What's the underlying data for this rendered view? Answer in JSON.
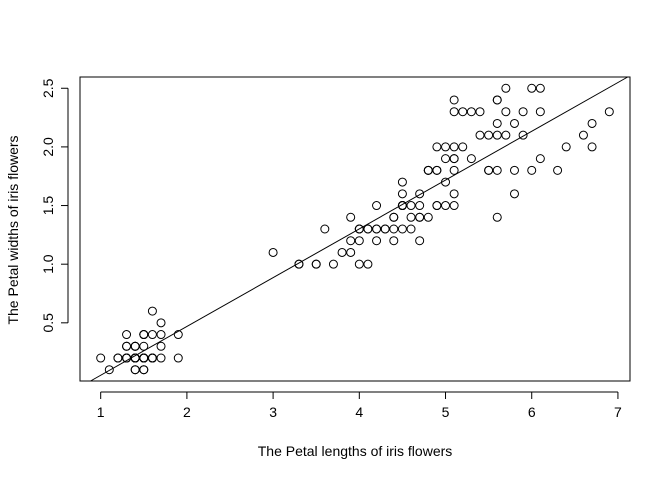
{
  "chart_data": {
    "type": "scatter",
    "title": "",
    "xlabel": "The Petal lengths of iris flowers",
    "ylabel": "The Petal widths of iris flowers",
    "xlim": [
      0.76,
      7.14
    ],
    "ylim": [
      0.004,
      2.596
    ],
    "xticks": [
      1,
      2,
      3,
      4,
      5,
      6,
      7
    ],
    "yticks": [
      0.5,
      1.0,
      1.5,
      2.0,
      2.5
    ],
    "ytick_labels": [
      "0.5",
      "1.0",
      "1.5",
      "2.0",
      "2.5"
    ],
    "grid": false,
    "regression_line": {
      "intercept": -0.363,
      "slope": 0.416
    },
    "x": [
      1.4,
      1.4,
      1.3,
      1.5,
      1.4,
      1.7,
      1.4,
      1.5,
      1.4,
      1.5,
      1.5,
      1.6,
      1.4,
      1.1,
      1.2,
      1.5,
      1.3,
      1.4,
      1.7,
      1.5,
      1.7,
      1.5,
      1.0,
      1.7,
      1.9,
      1.6,
      1.6,
      1.5,
      1.4,
      1.6,
      1.6,
      1.5,
      1.5,
      1.4,
      1.5,
      1.2,
      1.3,
      1.4,
      1.3,
      1.5,
      1.3,
      1.3,
      1.3,
      1.6,
      1.9,
      1.4,
      1.6,
      1.4,
      1.5,
      1.4,
      4.7,
      4.5,
      4.9,
      4.0,
      4.6,
      4.5,
      4.7,
      3.3,
      4.6,
      3.9,
      3.5,
      4.2,
      4.0,
      4.7,
      3.6,
      4.4,
      4.5,
      4.1,
      4.5,
      3.9,
      4.8,
      4.0,
      4.9,
      4.7,
      4.3,
      4.4,
      4.8,
      5.0,
      4.5,
      3.5,
      3.8,
      3.7,
      3.9,
      5.1,
      4.5,
      4.5,
      4.7,
      4.4,
      4.1,
      4.0,
      4.4,
      4.6,
      4.0,
      3.3,
      4.2,
      4.2,
      4.2,
      4.3,
      3.0,
      4.1,
      6.0,
      5.1,
      5.9,
      5.6,
      5.8,
      6.6,
      4.5,
      6.3,
      5.8,
      6.1,
      5.1,
      5.3,
      5.5,
      5.0,
      5.1,
      5.3,
      5.5,
      6.7,
      6.9,
      5.0,
      5.7,
      4.9,
      6.7,
      4.9,
      5.7,
      6.0,
      4.8,
      4.9,
      5.6,
      5.8,
      6.1,
      6.4,
      5.6,
      5.1,
      5.6,
      6.1,
      5.6,
      5.5,
      4.8,
      5.4,
      5.6,
      5.1,
      5.1,
      5.9,
      5.7,
      5.2,
      5.0,
      5.2,
      5.4,
      5.1
    ],
    "y": [
      0.2,
      0.2,
      0.2,
      0.2,
      0.2,
      0.4,
      0.3,
      0.2,
      0.2,
      0.1,
      0.2,
      0.2,
      0.1,
      0.1,
      0.2,
      0.4,
      0.4,
      0.3,
      0.3,
      0.3,
      0.2,
      0.4,
      0.2,
      0.5,
      0.2,
      0.2,
      0.4,
      0.2,
      0.2,
      0.2,
      0.2,
      0.4,
      0.1,
      0.2,
      0.2,
      0.2,
      0.2,
      0.1,
      0.2,
      0.2,
      0.3,
      0.3,
      0.2,
      0.6,
      0.4,
      0.3,
      0.2,
      0.2,
      0.2,
      0.2,
      1.4,
      1.5,
      1.5,
      1.3,
      1.5,
      1.3,
      1.6,
      1.0,
      1.3,
      1.4,
      1.0,
      1.5,
      1.0,
      1.4,
      1.3,
      1.4,
      1.5,
      1.0,
      1.5,
      1.1,
      1.8,
      1.3,
      1.5,
      1.2,
      1.3,
      1.4,
      1.4,
      1.7,
      1.5,
      1.0,
      1.1,
      1.0,
      1.2,
      1.6,
      1.5,
      1.6,
      1.5,
      1.3,
      1.3,
      1.3,
      1.2,
      1.4,
      1.2,
      1.0,
      1.3,
      1.2,
      1.3,
      1.3,
      1.1,
      1.3,
      2.5,
      1.9,
      2.1,
      1.8,
      2.2,
      2.1,
      1.7,
      1.8,
      1.8,
      2.5,
      2.0,
      1.9,
      2.1,
      2.0,
      2.4,
      2.3,
      1.8,
      2.2,
      2.3,
      1.5,
      2.3,
      2.0,
      2.0,
      1.8,
      2.1,
      1.8,
      1.8,
      1.8,
      2.1,
      1.6,
      1.9,
      2.0,
      2.2,
      1.5,
      1.4,
      2.3,
      2.4,
      1.8,
      1.8,
      2.1,
      2.4,
      2.3,
      1.9,
      2.3,
      2.5,
      2.3,
      1.9,
      2.0,
      2.3,
      1.8
    ]
  }
}
